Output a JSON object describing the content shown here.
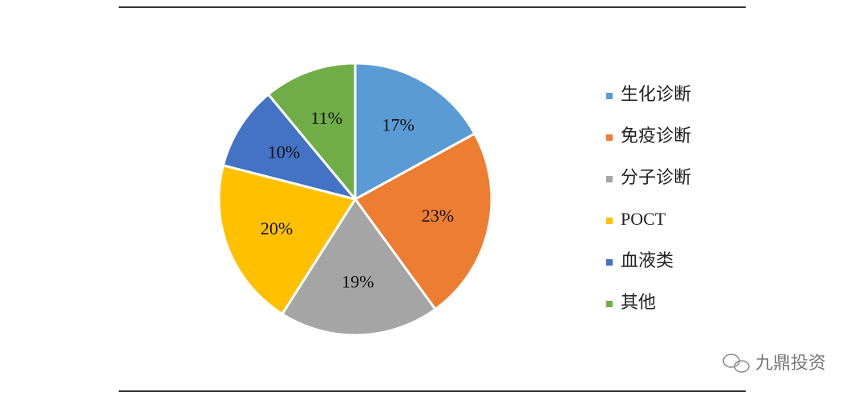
{
  "chart_data": {
    "type": "pie",
    "categories": [
      "生化诊断",
      "免疫诊断",
      "分子诊断",
      "POCT",
      "血液类",
      "其他"
    ],
    "values": [
      17,
      23,
      19,
      20,
      10,
      11
    ],
    "value_labels": [
      "17%",
      "23%",
      "19%",
      "20%",
      "10%",
      "11%"
    ],
    "colors": [
      "#5b9bd5",
      "#ed7d31",
      "#a5a5a5",
      "#ffc000",
      "#4472c4",
      "#70ad47"
    ],
    "legend": "right"
  },
  "watermark": "九鼎投资"
}
